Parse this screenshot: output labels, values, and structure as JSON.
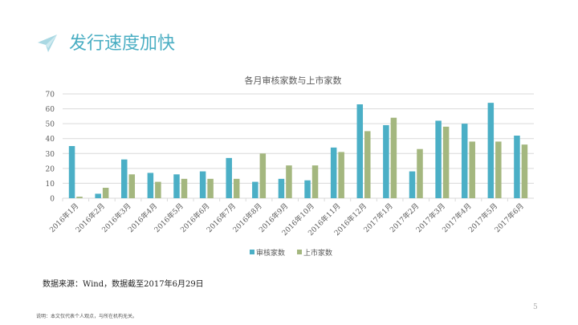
{
  "slide": {
    "title": "发行速度加快",
    "source": "数据来源：Wind，数据截至2017年6月29日",
    "disclaimer": "说明：本文仅代表个人观点，与所在机构无关。",
    "page_number": "5",
    "icon": "paper-plane-icon",
    "accent_color": "#4aaec3"
  },
  "chart_data": {
    "type": "bar",
    "title": "各月审核家数与上市家数",
    "categories": [
      "2016年1月",
      "2016年2月",
      "2016年3月",
      "2016年4月",
      "2016年5月",
      "2016年6月",
      "2016年7月",
      "2016年8月",
      "2016年9月",
      "2016年10月",
      "2016年11月",
      "2016年12月",
      "2017年1月",
      "2017年2月",
      "2017年3月",
      "2017年4月",
      "2017年5月",
      "2017年6月"
    ],
    "series": [
      {
        "name": "审核家数",
        "color": "#4bafc6",
        "values": [
          35,
          3,
          26,
          17,
          16,
          18,
          27,
          11,
          13,
          12,
          34,
          63,
          49,
          18,
          52,
          50,
          64,
          42
        ]
      },
      {
        "name": "上市家数",
        "color": "#a4b77f",
        "values": [
          1,
          7,
          16,
          11,
          13,
          13,
          13,
          30,
          22,
          22,
          31,
          45,
          54,
          33,
          48,
          38,
          38,
          36
        ]
      }
    ],
    "ylim": [
      0,
      70
    ],
    "yticks": [
      "0",
      "10",
      "20",
      "30",
      "40",
      "50",
      "60",
      "70"
    ],
    "grid": true,
    "legend": "bottom"
  }
}
